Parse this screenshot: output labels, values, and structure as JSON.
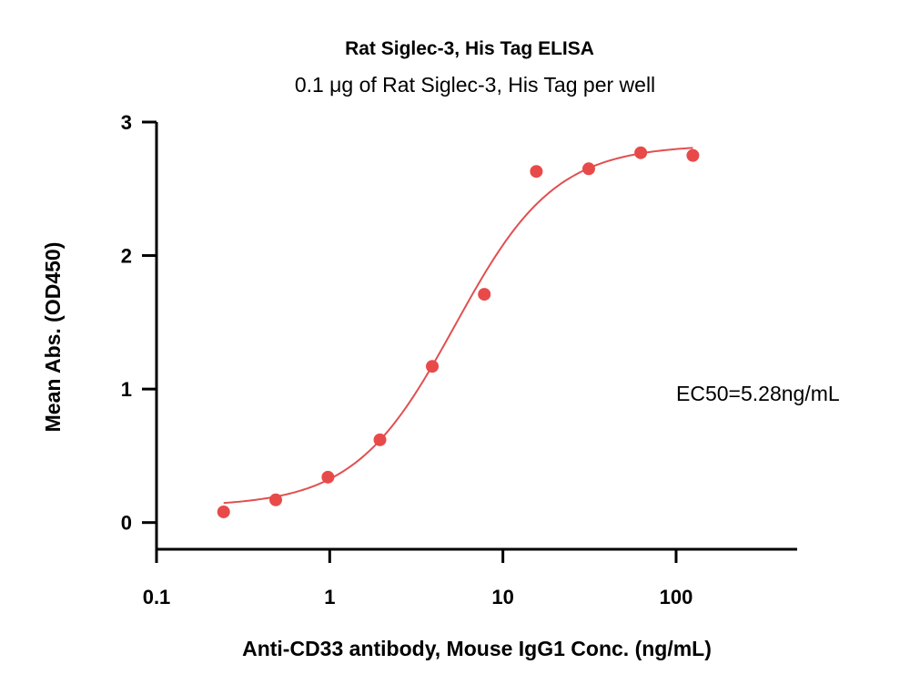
{
  "chart_data": {
    "type": "scatter",
    "title": "Rat Siglec-3, His Tag ELISA",
    "subtitle": "0.1 μg of Rat Siglec-3, His Tag per well",
    "xlabel": "Anti-CD33 antibody, Mouse IgG1 Conc. (ng/mL)",
    "ylabel": "Mean Abs. (OD450)",
    "x_scale": "log",
    "xlim": [
      0.1,
      500
    ],
    "ylim": [
      -0.2,
      3
    ],
    "x_ticks": [
      0.1,
      1,
      10,
      100
    ],
    "x_tick_labels": [
      "0.1",
      "1",
      "10",
      "100"
    ],
    "y_ticks": [
      0,
      1,
      2,
      3
    ],
    "y_tick_labels": [
      "0",
      "1",
      "2",
      "3"
    ],
    "grid": false,
    "point_color": "#e84a4a",
    "curve_color": "#e05050",
    "annotation": "EC50=5.28ng/mL",
    "series": [
      {
        "x": [
          0.244,
          0.488,
          0.977,
          1.95,
          3.91,
          7.81,
          15.6,
          31.3,
          62.5,
          125
        ],
        "y": [
          0.08,
          0.17,
          0.34,
          0.62,
          1.17,
          1.71,
          2.63,
          2.65,
          2.77,
          2.75
        ]
      }
    ],
    "fit": {
      "model": "4PL",
      "bottom": 0.12,
      "top": 2.83,
      "ec50": 5.28,
      "hill": 1.5,
      "x_range": [
        0.244,
        125
      ]
    }
  }
}
